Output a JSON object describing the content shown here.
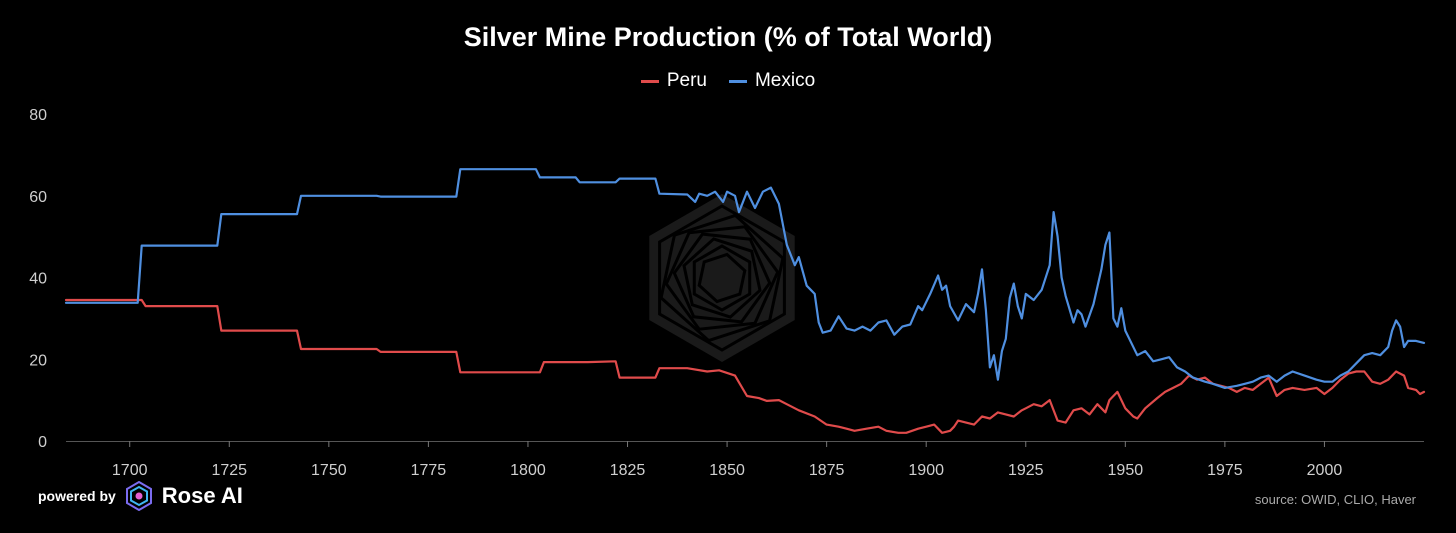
{
  "colors": {
    "peru": "#e04b4b",
    "mexico": "#4f8fe0",
    "axis_text": "#cfcfcf",
    "background": "#000000"
  },
  "footer": {
    "powered_by": "powered by",
    "brand": "Rose AI",
    "brand_icon": "rose-logo-icon",
    "source": "source: OWID, CLIO, Haver"
  },
  "chart_data": {
    "type": "line",
    "title": "Silver Mine Production (% of Total World)",
    "xlabel": "",
    "ylabel": "",
    "xlim": [
      1684,
      2025
    ],
    "ylim": [
      0,
      80
    ],
    "xticks": [
      1700,
      1725,
      1750,
      1775,
      1800,
      1825,
      1850,
      1875,
      1900,
      1925,
      1950,
      1975,
      2000
    ],
    "yticks": [
      0,
      20,
      40,
      60,
      80
    ],
    "grid": false,
    "legend_position": "top-center",
    "series": [
      {
        "name": "Peru",
        "color": "#e04b4b",
        "points": [
          [
            1684,
            34.5
          ],
          [
            1703,
            34.5
          ],
          [
            1704,
            33
          ],
          [
            1722,
            33
          ],
          [
            1723,
            27
          ],
          [
            1742,
            27
          ],
          [
            1743,
            22.5
          ],
          [
            1762,
            22.5
          ],
          [
            1763,
            21.8
          ],
          [
            1782,
            21.8
          ],
          [
            1783,
            16.8
          ],
          [
            1787,
            16.8
          ],
          [
            1800,
            16.8
          ],
          [
            1803,
            16.8
          ],
          [
            1804,
            19.3
          ],
          [
            1815,
            19.3
          ],
          [
            1822,
            19.5
          ],
          [
            1823,
            15.5
          ],
          [
            1832,
            15.5
          ],
          [
            1833,
            17.8
          ],
          [
            1840,
            17.8
          ],
          [
            1845,
            17
          ],
          [
            1848,
            17.3
          ],
          [
            1852,
            16
          ],
          [
            1855,
            11
          ],
          [
            1858,
            10.5
          ],
          [
            1860,
            9.8
          ],
          [
            1863,
            10
          ],
          [
            1865,
            9
          ],
          [
            1868,
            7.5
          ],
          [
            1872,
            6
          ],
          [
            1875,
            4
          ],
          [
            1878,
            3.5
          ],
          [
            1880,
            3
          ],
          [
            1882,
            2.5
          ],
          [
            1885,
            3
          ],
          [
            1888,
            3.5
          ],
          [
            1890,
            2.5
          ],
          [
            1893,
            2
          ],
          [
            1895,
            2
          ],
          [
            1898,
            3
          ],
          [
            1900,
            3.5
          ],
          [
            1902,
            4
          ],
          [
            1904,
            2
          ],
          [
            1906,
            2.5
          ],
          [
            1907,
            3.5
          ],
          [
            1908,
            5
          ],
          [
            1910,
            4.5
          ],
          [
            1912,
            4
          ],
          [
            1914,
            6
          ],
          [
            1916,
            5.5
          ],
          [
            1918,
            7
          ],
          [
            1920,
            6.5
          ],
          [
            1922,
            6
          ],
          [
            1924,
            7.5
          ],
          [
            1925,
            8
          ],
          [
            1927,
            9
          ],
          [
            1929,
            8.5
          ],
          [
            1931,
            10
          ],
          [
            1933,
            5
          ],
          [
            1935,
            4.5
          ],
          [
            1937,
            7.5
          ],
          [
            1939,
            8
          ],
          [
            1941,
            6.5
          ],
          [
            1943,
            9
          ],
          [
            1945,
            7
          ],
          [
            1946,
            10
          ],
          [
            1948,
            12
          ],
          [
            1950,
            8
          ],
          [
            1952,
            6
          ],
          [
            1953,
            5.5
          ],
          [
            1955,
            8
          ],
          [
            1958,
            10.5
          ],
          [
            1960,
            12
          ],
          [
            1962,
            13
          ],
          [
            1964,
            14
          ],
          [
            1966,
            16
          ],
          [
            1968,
            15
          ],
          [
            1970,
            15.5
          ],
          [
            1972,
            14
          ],
          [
            1974,
            13.5
          ],
          [
            1976,
            13
          ],
          [
            1978,
            12
          ],
          [
            1980,
            13
          ],
          [
            1982,
            12.5
          ],
          [
            1984,
            14
          ],
          [
            1986,
            15.5
          ],
          [
            1988,
            11
          ],
          [
            1990,
            12.5
          ],
          [
            1992,
            13
          ],
          [
            1995,
            12.5
          ],
          [
            1998,
            13
          ],
          [
            2000,
            11.5
          ],
          [
            2002,
            13
          ],
          [
            2004,
            15
          ],
          [
            2006,
            16.5
          ],
          [
            2008,
            17
          ],
          [
            2010,
            17
          ],
          [
            2012,
            14.5
          ],
          [
            2014,
            14
          ],
          [
            2016,
            15
          ],
          [
            2018,
            17
          ],
          [
            2020,
            16
          ],
          [
            2021,
            13
          ],
          [
            2023,
            12.5
          ],
          [
            2024,
            11.5
          ],
          [
            2025,
            12
          ]
        ]
      },
      {
        "name": "Mexico",
        "color": "#4f8fe0",
        "points": [
          [
            1684,
            33.8
          ],
          [
            1702,
            33.8
          ],
          [
            1703,
            47.8
          ],
          [
            1722,
            47.8
          ],
          [
            1723,
            55.5
          ],
          [
            1742,
            55.5
          ],
          [
            1743,
            60
          ],
          [
            1762,
            60
          ],
          [
            1763,
            59.8
          ],
          [
            1782,
            59.8
          ],
          [
            1783,
            66.5
          ],
          [
            1802,
            66.5
          ],
          [
            1803,
            64.5
          ],
          [
            1812,
            64.5
          ],
          [
            1813,
            63.3
          ],
          [
            1822,
            63.3
          ],
          [
            1823,
            64.2
          ],
          [
            1832,
            64.2
          ],
          [
            1833,
            60.5
          ],
          [
            1840,
            60.3
          ],
          [
            1842,
            58.5
          ],
          [
            1843,
            60.5
          ],
          [
            1845,
            60
          ],
          [
            1847,
            61
          ],
          [
            1849,
            58.5
          ],
          [
            1850,
            61
          ],
          [
            1852,
            60
          ],
          [
            1853,
            56
          ],
          [
            1855,
            61
          ],
          [
            1857,
            57
          ],
          [
            1859,
            61
          ],
          [
            1861,
            62
          ],
          [
            1863,
            58
          ],
          [
            1865,
            48
          ],
          [
            1867,
            43
          ],
          [
            1868,
            45
          ],
          [
            1870,
            38
          ],
          [
            1872,
            36
          ],
          [
            1873,
            29
          ],
          [
            1874,
            26.5
          ],
          [
            1876,
            27
          ],
          [
            1878,
            30.5
          ],
          [
            1880,
            27.5
          ],
          [
            1882,
            27
          ],
          [
            1884,
            28
          ],
          [
            1886,
            27
          ],
          [
            1888,
            29
          ],
          [
            1890,
            29.5
          ],
          [
            1892,
            26
          ],
          [
            1894,
            28
          ],
          [
            1896,
            28.5
          ],
          [
            1898,
            33
          ],
          [
            1899,
            32
          ],
          [
            1901,
            36
          ],
          [
            1903,
            40.5
          ],
          [
            1904,
            37
          ],
          [
            1905,
            38
          ],
          [
            1906,
            33
          ],
          [
            1908,
            29.5
          ],
          [
            1910,
            33.5
          ],
          [
            1912,
            31.5
          ],
          [
            1913,
            36
          ],
          [
            1914,
            42
          ],
          [
            1915,
            32
          ],
          [
            1916,
            18
          ],
          [
            1917,
            21
          ],
          [
            1918,
            15
          ],
          [
            1919,
            22
          ],
          [
            1920,
            25
          ],
          [
            1921,
            35
          ],
          [
            1922,
            38.5
          ],
          [
            1923,
            33
          ],
          [
            1924,
            30
          ],
          [
            1925,
            36
          ],
          [
            1927,
            34.5
          ],
          [
            1929,
            37
          ],
          [
            1931,
            43
          ],
          [
            1932,
            56
          ],
          [
            1933,
            50
          ],
          [
            1934,
            40
          ],
          [
            1935,
            35.5
          ],
          [
            1937,
            29
          ],
          [
            1938,
            32
          ],
          [
            1939,
            31
          ],
          [
            1940,
            28
          ],
          [
            1942,
            33.5
          ],
          [
            1944,
            42
          ],
          [
            1945,
            48
          ],
          [
            1946,
            51
          ],
          [
            1947,
            30
          ],
          [
            1948,
            28
          ],
          [
            1949,
            32.5
          ],
          [
            1950,
            27
          ],
          [
            1951,
            25
          ],
          [
            1953,
            21
          ],
          [
            1955,
            22
          ],
          [
            1957,
            19.5
          ],
          [
            1959,
            20
          ],
          [
            1961,
            20.5
          ],
          [
            1963,
            18
          ],
          [
            1965,
            17
          ],
          [
            1967,
            15.5
          ],
          [
            1970,
            14.5
          ],
          [
            1972,
            14
          ],
          [
            1975,
            13
          ],
          [
            1978,
            13.5
          ],
          [
            1980,
            14
          ],
          [
            1982,
            14.5
          ],
          [
            1984,
            15.5
          ],
          [
            1986,
            16
          ],
          [
            1988,
            14.5
          ],
          [
            1990,
            16
          ],
          [
            1992,
            17
          ],
          [
            1995,
            16
          ],
          [
            1998,
            15
          ],
          [
            2000,
            14.5
          ],
          [
            2002,
            14.5
          ],
          [
            2004,
            16
          ],
          [
            2006,
            17
          ],
          [
            2008,
            19
          ],
          [
            2010,
            21
          ],
          [
            2012,
            21.5
          ],
          [
            2014,
            21
          ],
          [
            2016,
            23
          ],
          [
            2017,
            27
          ],
          [
            2018,
            29.5
          ],
          [
            2019,
            28
          ],
          [
            2020,
            23
          ],
          [
            2021,
            24.5
          ],
          [
            2023,
            24.5
          ],
          [
            2025,
            24
          ]
        ]
      }
    ]
  }
}
